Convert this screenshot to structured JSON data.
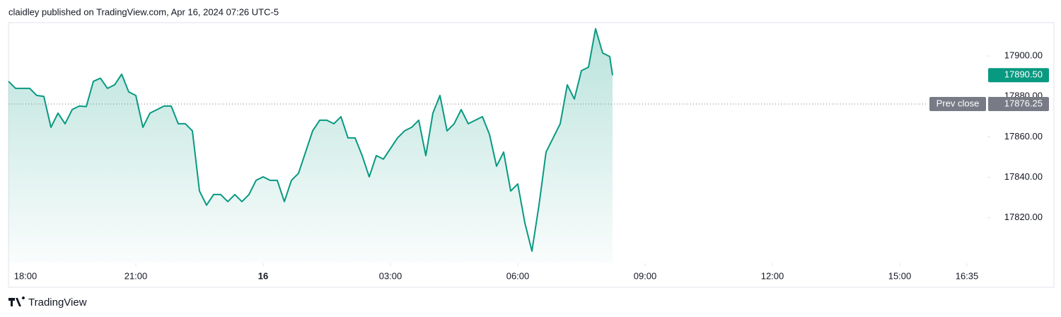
{
  "chart_data": {
    "type": "area",
    "title": "claidley published on TradingView.com, Apr 16, 2024 07:26 UTC-5",
    "brand": "TradingView",
    "color": "#089981",
    "x": [
      "18:00",
      "18:10",
      "18:20",
      "18:30",
      "18:40",
      "18:50",
      "19:00",
      "19:10",
      "19:20",
      "19:30",
      "19:40",
      "19:50",
      "20:00",
      "20:10",
      "20:20",
      "20:30",
      "20:40",
      "20:50",
      "21:00",
      "21:10",
      "21:20",
      "21:30",
      "21:40",
      "21:50",
      "22:00",
      "22:10",
      "22:20",
      "22:30",
      "22:40",
      "22:50",
      "23:00",
      "23:10",
      "23:20",
      "23:30",
      "23:40",
      "23:50",
      "00:00",
      "00:10",
      "00:20",
      "00:30",
      "00:40",
      "00:50",
      "01:00",
      "01:10",
      "01:20",
      "01:30",
      "01:40",
      "01:50",
      "02:00",
      "02:10",
      "02:20",
      "02:30",
      "02:40",
      "02:50",
      "03:00",
      "03:10",
      "03:20",
      "03:30",
      "03:40",
      "03:50",
      "04:00",
      "04:10",
      "04:20",
      "04:30",
      "04:40",
      "04:50",
      "05:00",
      "05:10",
      "05:20",
      "05:30",
      "05:40",
      "05:50",
      "06:00",
      "06:10",
      "06:20",
      "06:30",
      "06:40",
      "06:50",
      "07:00",
      "07:10",
      "07:20",
      "07:30",
      "07:40",
      "07:50",
      "08:00",
      "08:10",
      "08:14"
    ],
    "values": [
      17887.5,
      17884,
      17884,
      17884,
      17880.5,
      17880,
      17864.75,
      17871.75,
      17866.5,
      17873.5,
      17875.25,
      17875,
      17887.5,
      17889,
      17884,
      17885.75,
      17891,
      17882.25,
      17880.5,
      17864.75,
      17871.75,
      17873.5,
      17875.25,
      17875.25,
      17866.5,
      17866.5,
      17863,
      17833.25,
      17826.25,
      17831.5,
      17831.5,
      17828,
      17831.5,
      17828,
      17831.5,
      17838.5,
      17840.25,
      17838.5,
      17838.5,
      17828,
      17838.5,
      17842,
      17852.5,
      17863,
      17868.25,
      17868.25,
      17866.5,
      17870,
      17859.5,
      17859.5,
      17850.75,
      17840.25,
      17850.75,
      17849,
      17854.25,
      17859.5,
      17863,
      17864.75,
      17868.25,
      17850.75,
      17871.75,
      17880.5,
      17863,
      17866.5,
      17873.5,
      17866.5,
      17868.25,
      17870,
      17861.25,
      17845.5,
      17852.5,
      17833.25,
      17836.75,
      17817.5,
      17803.5,
      17826.25,
      17852.5,
      17859.5,
      17866.5,
      17885.75,
      17878.75,
      17892.75,
      17894.5,
      17913.5,
      17901.5,
      17899.75,
      17890.5
    ],
    "xlim": [
      "18:00",
      "17:03"
    ],
    "xticks": [
      {
        "value": "18:00",
        "label": "18:00"
      },
      {
        "value": "21:00",
        "label": "21:00"
      },
      {
        "value": "00:00",
        "label": "16"
      },
      {
        "value": "03:00",
        "label": "03:00"
      },
      {
        "value": "06:00",
        "label": "06:00"
      },
      {
        "value": "09:00",
        "label": "09:00"
      },
      {
        "value": "12:00",
        "label": "12:00"
      },
      {
        "value": "15:00",
        "label": "15:00"
      },
      {
        "value": "16:35",
        "label": "16:35"
      }
    ],
    "ylim": [
      17797.5,
      17916.5
    ],
    "yticks": [
      {
        "value": 17820,
        "label": "17820.00"
      },
      {
        "value": 17840,
        "label": "17840.00"
      },
      {
        "value": 17860,
        "label": "17860.00"
      },
      {
        "value": 17880,
        "label": "17880.00"
      },
      {
        "value": 17900,
        "label": "17900.00"
      }
    ],
    "last_price": {
      "value": 17890.5,
      "label": "17890.50"
    },
    "prev_close": {
      "name": "Prev close",
      "value": 17876.25,
      "label": "17876.25"
    }
  }
}
